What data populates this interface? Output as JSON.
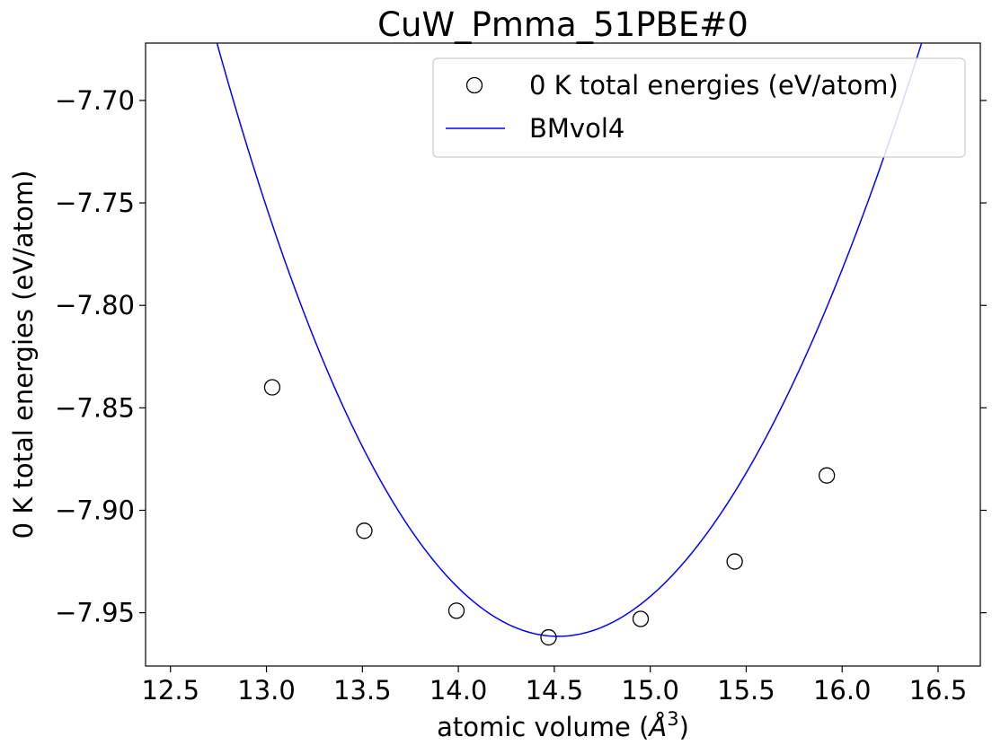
{
  "chart_data": {
    "type": "scatter",
    "title": "CuW_Pmma_51PBE#0",
    "xlabel": "atomic volume (Å³)",
    "xlabel_parts": {
      "prefix": "atomic volume (",
      "unit_symbol": "Å",
      "exponent": "3",
      "suffix": ")"
    },
    "ylabel": "0 K total energies (eV/atom)",
    "xlim": [
      12.37,
      16.72
    ],
    "ylim": [
      -7.976,
      -7.672
    ],
    "xticks": [
      12.5,
      13.0,
      13.5,
      14.0,
      14.5,
      15.0,
      15.5,
      16.0,
      16.5
    ],
    "xtick_labels": [
      "12.5",
      "13.0",
      "13.5",
      "14.0",
      "14.5",
      "15.0",
      "15.5",
      "16.0",
      "16.5"
    ],
    "yticks": [
      -7.7,
      -7.75,
      -7.8,
      -7.85,
      -7.9,
      -7.95
    ],
    "ytick_labels": [
      "−7.70",
      "−7.75",
      "−7.80",
      "−7.85",
      "−7.90",
      "−7.95"
    ],
    "grid": false,
    "legend_position": "top-right",
    "series": [
      {
        "name": "0 K total energies (eV/atom)",
        "kind": "points",
        "marker": "open-circle",
        "color": "#000000",
        "x": [
          13.03,
          13.51,
          13.99,
          14.47,
          14.95,
          15.44,
          15.92
        ],
        "y": [
          -7.84,
          -7.91,
          -7.949,
          -7.962,
          -7.953,
          -7.925,
          -7.883
        ]
      },
      {
        "name": "BMvol4",
        "kind": "line",
        "color": "#0000ff",
        "fit": {
          "v0": 14.52,
          "e0": -7.9615,
          "a": 0.0858
        }
      }
    ]
  }
}
